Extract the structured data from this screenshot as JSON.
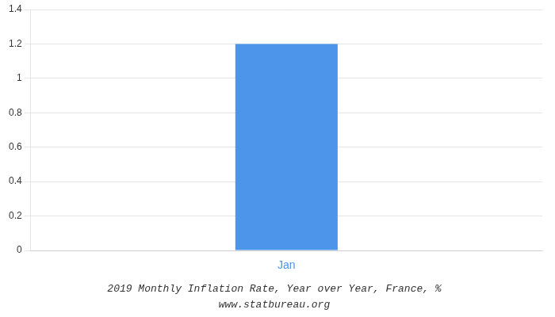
{
  "chart_data": {
    "type": "bar",
    "title": "2019 Monthly Inflation Rate, Year over Year, France, %",
    "subtitle": "www.statbureau.org",
    "categories": [
      "Jan"
    ],
    "values": [
      1.2
    ],
    "color": "#4d94eb",
    "ylim": [
      0,
      1.4
    ],
    "yticks": [
      0,
      0.2,
      0.4,
      0.6,
      0.8,
      1.0,
      1.2,
      1.4
    ],
    "grid": true
  }
}
